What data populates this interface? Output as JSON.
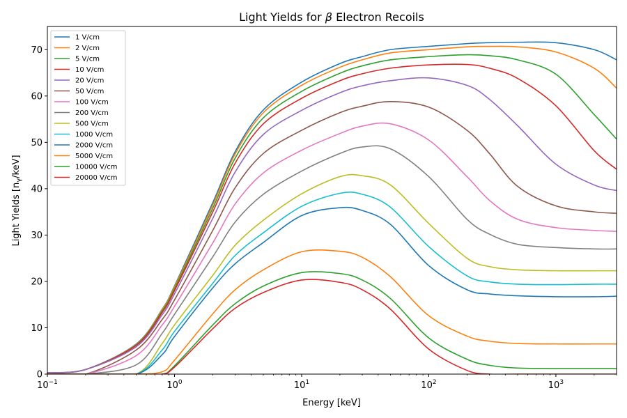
{
  "chart_data": {
    "type": "line",
    "title": "Light Yields for β Electron Recoils",
    "title_prefix": "Light Yields for ",
    "title_symbol": "β",
    "title_suffix": " Electron Recoils",
    "xlabel": "Energy [keV]",
    "ylabel": "Light Yields [nγ/keV]",
    "ylabel_prefix": "Light Yields [n",
    "ylabel_sub": "γ",
    "ylabel_suffix": "/keV]",
    "xscale": "log",
    "xlim": [
      0.1,
      3000
    ],
    "ylim": [
      0,
      75
    ],
    "x_ticks": [
      {
        "value": 0.1,
        "base": "10",
        "exp": "−1"
      },
      {
        "value": 1,
        "base": "10",
        "exp": "0"
      },
      {
        "value": 10,
        "base": "10",
        "exp": "1"
      },
      {
        "value": 100,
        "base": "10",
        "exp": "2"
      },
      {
        "value": 1000,
        "base": "10",
        "exp": "3"
      }
    ],
    "y_ticks": [
      0,
      10,
      20,
      30,
      40,
      50,
      60,
      70
    ],
    "grid": false,
    "legend_position": "top-left",
    "x": [
      0.1,
      0.2,
      0.5,
      0.8,
      1,
      2,
      3,
      5,
      10,
      20,
      30,
      50,
      100,
      200,
      300,
      500,
      1000,
      2000,
      3000
    ],
    "series": [
      {
        "name": "1 V/cm",
        "color": "#1f77b4",
        "values": [
          0.3,
          1,
          6.5,
          14,
          19,
          37,
          48,
          57,
          63,
          67,
          68.5,
          70,
          70.7,
          71.3,
          71.5,
          71.6,
          71.5,
          70,
          67.8
        ]
      },
      {
        "name": "2 V/cm",
        "color": "#ff7f0e",
        "values": [
          0.3,
          1,
          6.4,
          13.9,
          18.8,
          36.5,
          47.5,
          56.4,
          62.3,
          66.2,
          67.8,
          69.3,
          70,
          70.6,
          70.7,
          70.6,
          69.5,
          66,
          61.7
        ]
      },
      {
        "name": "5 V/cm",
        "color": "#2ca02c",
        "values": [
          0.3,
          1,
          6.3,
          13.6,
          18.4,
          35.8,
          46.6,
          55.3,
          61,
          64.9,
          66.5,
          67.8,
          68.5,
          68.9,
          68.7,
          67.8,
          64.7,
          56,
          50.7
        ]
      },
      {
        "name": "10 V/cm",
        "color": "#d62728",
        "values": [
          0.3,
          1,
          6.2,
          13.3,
          18,
          35,
          45.5,
          54,
          59.5,
          63.3,
          64.8,
          66,
          66.7,
          66.8,
          66,
          63.8,
          57.9,
          48.2,
          44.2
        ]
      },
      {
        "name": "20 V/cm",
        "color": "#9467bd",
        "values": [
          0.3,
          1,
          5.9,
          12.8,
          17.3,
          33.6,
          43.6,
          51.7,
          56.9,
          60.7,
          62.2,
          63.3,
          63.9,
          62.3,
          59.3,
          53.6,
          45.3,
          40.8,
          39.6
        ]
      },
      {
        "name": "50 V/cm",
        "color": "#8c564b",
        "values": [
          0,
          0,
          5.2,
          11.8,
          16,
          31,
          40.2,
          47.6,
          52.6,
          56.4,
          57.8,
          58.8,
          57.6,
          52.6,
          47.6,
          40.5,
          36.3,
          35,
          34.7
        ]
      },
      {
        "name": "100 V/cm",
        "color": "#e377c2",
        "values": [
          0,
          0,
          4,
          10.6,
          14.6,
          28.3,
          36.7,
          43.4,
          48.3,
          51.9,
          53.5,
          54,
          50.5,
          42.6,
          37.5,
          33.4,
          31.6,
          31,
          30.8
        ]
      },
      {
        "name": "200 V/cm",
        "color": "#7f7f7f",
        "values": [
          0,
          0,
          2,
          8.8,
          12.9,
          25.3,
          32.8,
          38.8,
          43.8,
          47.6,
          49,
          48.6,
          42.6,
          33.4,
          30.2,
          28,
          27.3,
          27,
          27
        ]
      },
      {
        "name": "500 V/cm",
        "color": "#bcbd22",
        "values": [
          0,
          0,
          0,
          6.6,
          10.6,
          21.3,
          27.8,
          33.2,
          38.9,
          42.6,
          42.8,
          40.8,
          32.5,
          25,
          23.2,
          22.5,
          22.3,
          22.3,
          22.3
        ]
      },
      {
        "name": "1000 V/cm",
        "color": "#17becf",
        "values": [
          0,
          0,
          0,
          5.2,
          9.2,
          19.6,
          25.6,
          30.5,
          36.2,
          39,
          38.8,
          36,
          27.5,
          21.2,
          19.9,
          19.4,
          19.3,
          19.4,
          19.4
        ]
      },
      {
        "name": "2000 V/cm",
        "color": "#1f77b4",
        "values": [
          0,
          0,
          0,
          4.2,
          8.1,
          18.6,
          23.8,
          28.4,
          34.2,
          35.9,
          35.3,
          32.3,
          23.4,
          18.2,
          17.3,
          16.9,
          16.7,
          16.7,
          16.8
        ]
      },
      {
        "name": "5000 V/cm",
        "color": "#ff7f0e",
        "values": [
          0,
          0,
          0,
          0.5,
          3,
          13,
          18.2,
          22.5,
          26.4,
          26.5,
          25.2,
          21,
          12.6,
          8.2,
          7.1,
          6.6,
          6.5,
          6.5,
          6.5
        ]
      },
      {
        "name": "10000 V/cm",
        "color": "#2ca02c",
        "values": [
          0,
          0,
          0,
          0,
          1.8,
          10.6,
          15.2,
          19,
          21.9,
          21.7,
          20.3,
          16.3,
          7.8,
          3.2,
          1.9,
          1.3,
          1.2,
          1.2,
          1.2
        ]
      },
      {
        "name": "20000 V/cm",
        "color": "#d62728",
        "values": [
          0,
          0,
          0,
          0,
          1.5,
          9.8,
          14.2,
          17.6,
          20.3,
          19.8,
          18.2,
          14,
          5.4,
          0.8,
          0,
          0,
          0,
          0,
          0
        ]
      }
    ]
  }
}
